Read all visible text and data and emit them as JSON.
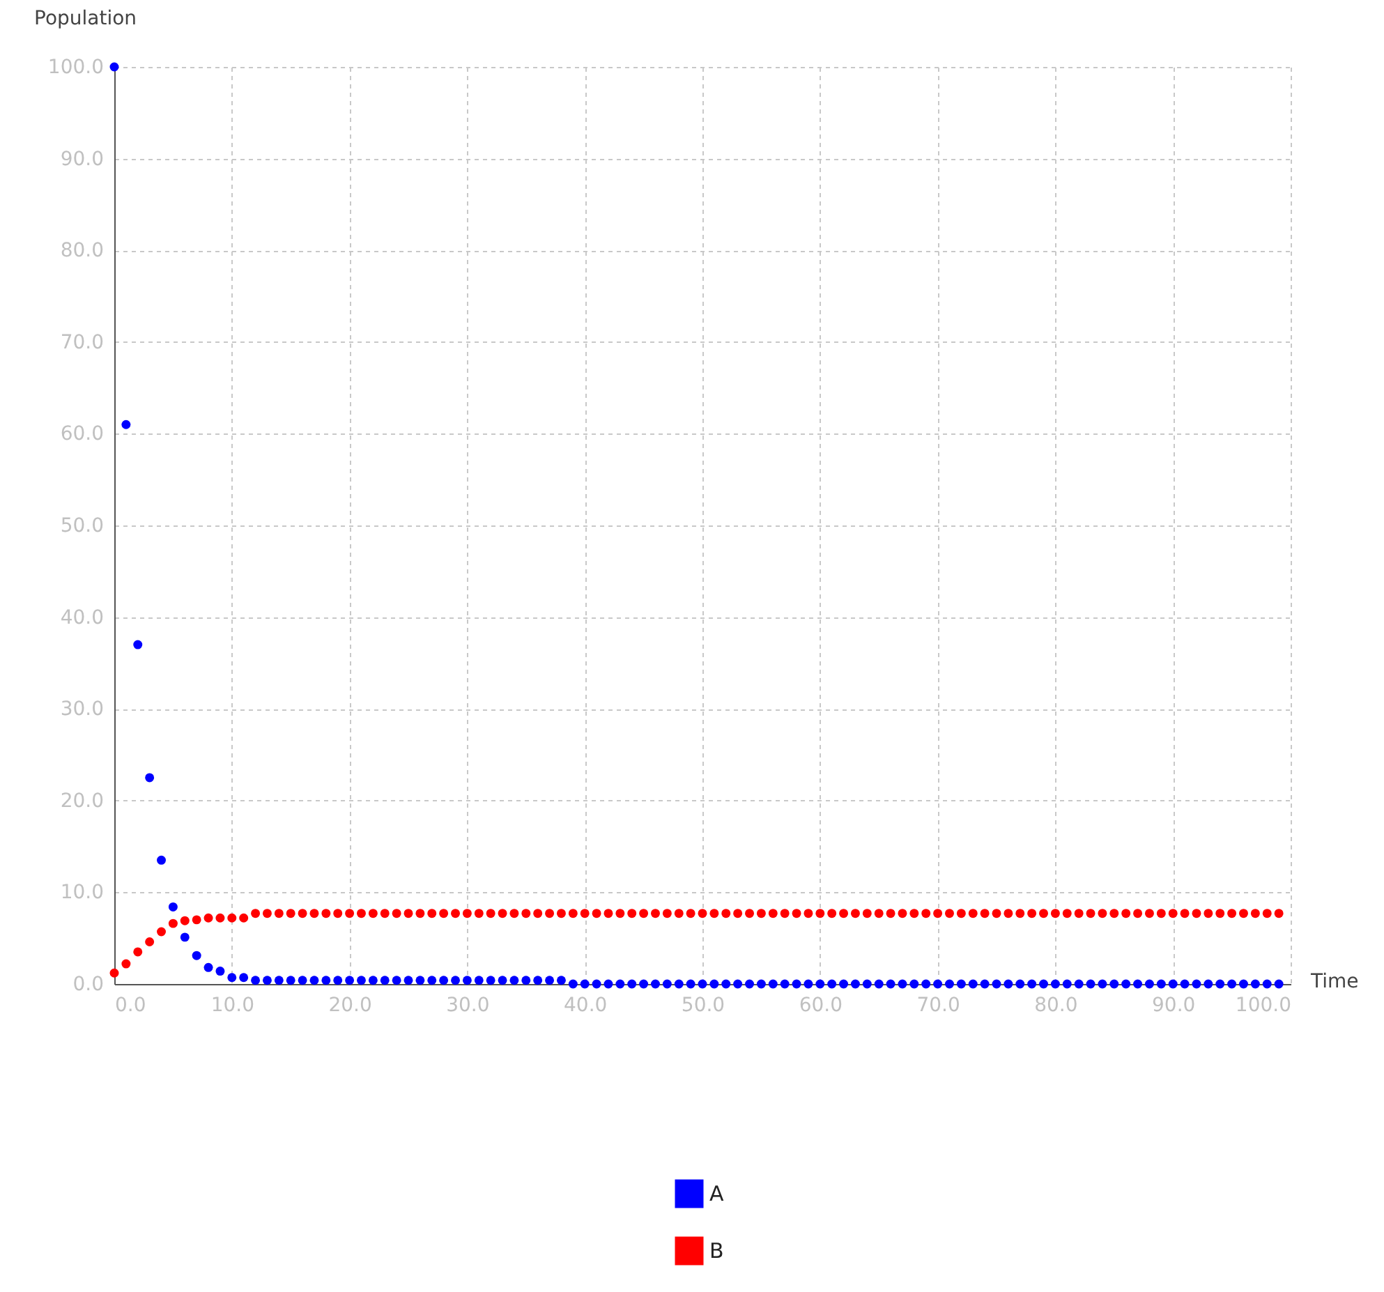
{
  "chart_data": {
    "type": "scatter",
    "xlabel": "Time",
    "ylabel": "Population",
    "x": [
      0,
      1,
      2,
      3,
      4,
      5,
      6,
      7,
      8,
      9,
      10,
      11,
      12,
      13,
      14,
      15,
      16,
      17,
      18,
      19,
      20,
      21,
      22,
      23,
      24,
      25,
      26,
      27,
      28,
      29,
      30,
      31,
      32,
      33,
      34,
      35,
      36,
      37,
      38,
      39,
      40,
      41,
      42,
      43,
      44,
      45,
      46,
      47,
      48,
      49,
      50,
      51,
      52,
      53,
      54,
      55,
      56,
      57,
      58,
      59,
      60,
      61,
      62,
      63,
      64,
      65,
      66,
      67,
      68,
      69,
      70,
      71,
      72,
      73,
      74,
      75,
      76,
      77,
      78,
      79,
      80,
      81,
      82,
      83,
      84,
      85,
      86,
      87,
      88,
      89,
      90,
      91,
      92,
      93,
      94,
      95,
      96,
      97,
      98,
      99
    ],
    "series": [
      {
        "name": "A",
        "color": "#0000ff",
        "values": [
          100,
          61,
          37,
          22.5,
          13.5,
          8.4,
          5.1,
          3.1,
          1.8,
          1.4,
          0.7,
          0.7,
          0.4,
          0.4,
          0.4,
          0.4,
          0.4,
          0.4,
          0.4,
          0.4,
          0.4,
          0.4,
          0.4,
          0.4,
          0.4,
          0.4,
          0.4,
          0.4,
          0.4,
          0.4,
          0.4,
          0.4,
          0.4,
          0.4,
          0.4,
          0.4,
          0.4,
          0.4,
          0.4,
          0,
          0,
          0,
          0,
          0,
          0,
          0,
          0,
          0,
          0,
          0,
          0,
          0,
          0,
          0,
          0,
          0,
          0,
          0,
          0,
          0,
          0,
          0,
          0,
          0,
          0,
          0,
          0,
          0,
          0,
          0,
          0,
          0,
          0,
          0,
          0,
          0,
          0,
          0,
          0,
          0,
          0,
          0,
          0,
          0,
          0,
          0,
          0,
          0,
          0,
          0,
          0,
          0,
          0,
          0,
          0,
          0,
          0,
          0,
          0,
          0
        ]
      },
      {
        "name": "B",
        "color": "#ff0000",
        "values": [
          1.2,
          2.2,
          3.5,
          4.6,
          5.7,
          6.6,
          6.9,
          7.0,
          7.2,
          7.2,
          7.2,
          7.2,
          7.7,
          7.7,
          7.7,
          7.7,
          7.7,
          7.7,
          7.7,
          7.7,
          7.7,
          7.7,
          7.7,
          7.7,
          7.7,
          7.7,
          7.7,
          7.7,
          7.7,
          7.7,
          7.7,
          7.7,
          7.7,
          7.7,
          7.7,
          7.7,
          7.7,
          7.7,
          7.7,
          7.7,
          7.7,
          7.7,
          7.7,
          7.7,
          7.7,
          7.7,
          7.7,
          7.7,
          7.7,
          7.7,
          7.7,
          7.7,
          7.7,
          7.7,
          7.7,
          7.7,
          7.7,
          7.7,
          7.7,
          7.7,
          7.7,
          7.7,
          7.7,
          7.7,
          7.7,
          7.7,
          7.7,
          7.7,
          7.7,
          7.7,
          7.7,
          7.7,
          7.7,
          7.7,
          7.7,
          7.7,
          7.7,
          7.7,
          7.7,
          7.7,
          7.7,
          7.7,
          7.7,
          7.7,
          7.7,
          7.7,
          7.7,
          7.7,
          7.7,
          7.7,
          7.7,
          7.7,
          7.7,
          7.7,
          7.7,
          7.7,
          7.7,
          7.7,
          7.7,
          7.7
        ]
      }
    ],
    "xlim": [
      0,
      100
    ],
    "xticks": [
      {
        "value": 0,
        "label": "0.0"
      },
      {
        "value": 10,
        "label": "10.0"
      },
      {
        "value": 20,
        "label": "20.0"
      },
      {
        "value": 30,
        "label": "30.0"
      },
      {
        "value": 40,
        "label": "40.0"
      },
      {
        "value": 50,
        "label": "50.0"
      },
      {
        "value": 60,
        "label": "60.0"
      },
      {
        "value": 70,
        "label": "70.0"
      },
      {
        "value": 80,
        "label": "80.0"
      },
      {
        "value": 90,
        "label": "90.0"
      },
      {
        "value": 100,
        "label": "100.0"
      }
    ],
    "ylim": [
      0,
      100
    ],
    "yticks": [
      {
        "value": 0,
        "label": "0.0"
      },
      {
        "value": 10,
        "label": "10.0"
      },
      {
        "value": 20,
        "label": "20.0"
      },
      {
        "value": 30,
        "label": "30.0"
      },
      {
        "value": 40,
        "label": "40.0"
      },
      {
        "value": 50,
        "label": "50.0"
      },
      {
        "value": 60,
        "label": "60.0"
      },
      {
        "value": 70,
        "label": "70.0"
      },
      {
        "value": 80,
        "label": "80.0"
      },
      {
        "value": 90,
        "label": "90.0"
      },
      {
        "value": 100,
        "label": "100.0"
      }
    ],
    "grid": true,
    "legend": "bottom",
    "marker": "circle"
  }
}
